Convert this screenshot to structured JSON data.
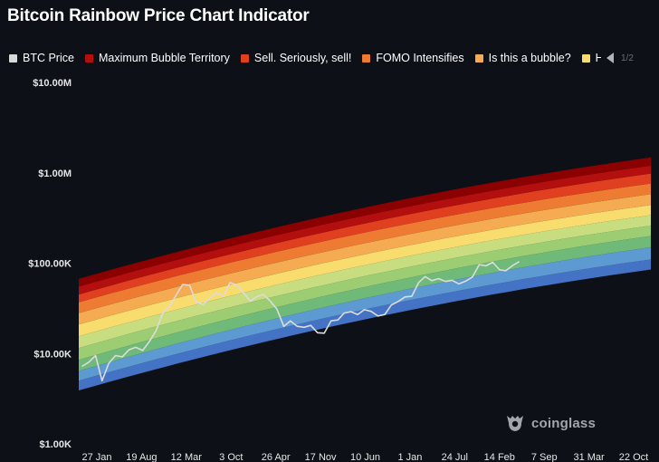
{
  "title": "Bitcoin Rainbow Price Chart Indicator",
  "legend": {
    "items": [
      {
        "label": "BTC Price",
        "color": "#d9d9d9"
      },
      {
        "label": "Maximum Bubble Territory",
        "color": "#b30f0f"
      },
      {
        "label": "Sell. Seriously, sell!",
        "color": "#e0401f"
      },
      {
        "label": "FOMO Intensifies",
        "color": "#ee7b32"
      },
      {
        "label": "Is this a bubble?",
        "color": "#f4ab52"
      },
      {
        "label": "HO",
        "color": "#f9dc6e"
      }
    ],
    "page": "1/2"
  },
  "watermark": "coinglass",
  "chart_data": {
    "type": "area",
    "y_scale": "log",
    "ylim": [
      1000,
      10000000
    ],
    "y_ticks": [
      {
        "value": 10000000,
        "label": "$10.00M"
      },
      {
        "value": 1000000,
        "label": "$1.00M"
      },
      {
        "value": 100000,
        "label": "$100.00K"
      },
      {
        "value": 10000,
        "label": "$10.00K"
      },
      {
        "value": 1000,
        "label": "$1.00K"
      }
    ],
    "x_ticks": [
      "27 Jan",
      "19 Aug",
      "12 Mar",
      "3 Oct",
      "26 Apr",
      "17 Nov",
      "10 Jun",
      "1 Jan",
      "24 Jul",
      "14 Feb",
      "7 Sep",
      "31 Mar",
      "22 Oct"
    ],
    "x_range": [
      "2019-12-01",
      "2026-12-31"
    ],
    "grid": false,
    "legend_position": "top",
    "bands": {
      "colors": [
        "#4472c4",
        "#5d9ad2",
        "#6fb979",
        "#9ccd72",
        "#c7dd80",
        "#f9dc6e",
        "#f4ab52",
        "#ee7b32",
        "#e0401f",
        "#b30f0f",
        "#8b0000"
      ],
      "edges_start": [
        3900,
        5000,
        6400,
        8500,
        11500,
        15500,
        21000,
        28000,
        37000,
        45000,
        55000,
        67000
      ],
      "edges_end": [
        85000,
        110000,
        150000,
        200000,
        260000,
        340000,
        440000,
        580000,
        760000,
        980000,
        1200000,
        1480000
      ]
    },
    "series": [
      {
        "name": "BTC Price",
        "color": "#dcdcdc",
        "x": [
          "2019-12",
          "2020-01",
          "2020-02",
          "2020-03",
          "2020-04",
          "2020-05",
          "2020-06",
          "2020-07",
          "2020-08",
          "2020-09",
          "2020-10",
          "2020-11",
          "2020-12",
          "2021-01",
          "2021-02",
          "2021-03",
          "2021-04",
          "2021-05",
          "2021-06",
          "2021-07",
          "2021-08",
          "2021-09",
          "2021-10",
          "2021-11",
          "2021-12",
          "2022-01",
          "2022-02",
          "2022-03",
          "2022-04",
          "2022-05",
          "2022-06",
          "2022-07",
          "2022-08",
          "2022-09",
          "2022-10",
          "2022-11",
          "2022-12",
          "2023-01",
          "2023-02",
          "2023-03",
          "2023-04",
          "2023-05",
          "2023-06",
          "2023-07",
          "2023-08",
          "2023-09",
          "2023-10",
          "2023-11",
          "2023-12",
          "2024-01",
          "2024-02",
          "2024-03",
          "2024-04",
          "2024-05",
          "2024-06",
          "2024-07",
          "2024-08",
          "2024-09",
          "2024-10",
          "2024-11",
          "2024-12",
          "2025-01",
          "2025-02",
          "2025-03",
          "2025-04",
          "2025-05"
        ],
        "y": [
          7200,
          8000,
          9500,
          5000,
          7800,
          9500,
          9200,
          11000,
          11700,
          10800,
          13500,
          18000,
          28000,
          33000,
          45000,
          58000,
          57000,
          37000,
          35000,
          41000,
          47000,
          43000,
          61000,
          57000,
          47000,
          38000,
          43000,
          45000,
          38000,
          31000,
          20000,
          23000,
          20000,
          19500,
          20500,
          17000,
          16800,
          23000,
          23500,
          28000,
          29000,
          27000,
          30500,
          29300,
          26000,
          27000,
          34500,
          37700,
          42300,
          43000,
          61000,
          71000,
          64000,
          67500,
          62700,
          64600,
          59000,
          63300,
          70200,
          96400,
          93400,
          102400,
          84300,
          82500,
          94200,
          104000
        ]
      }
    ]
  }
}
